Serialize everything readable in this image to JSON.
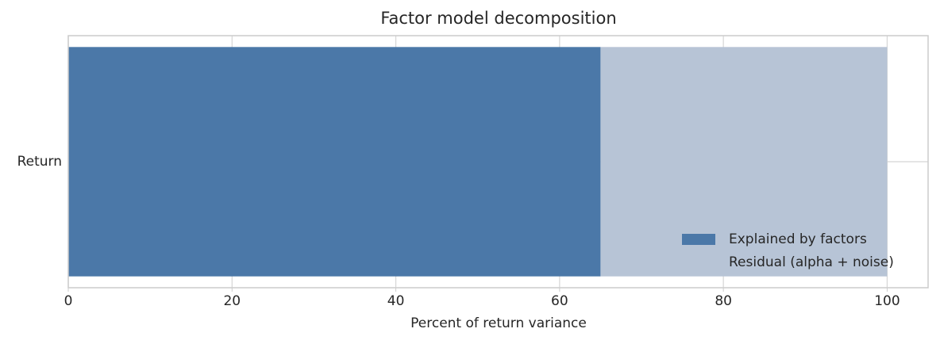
{
  "chart_data": {
    "type": "stacked-barh",
    "title": "Factor model decomposition",
    "xlabel": "Percent of return variance",
    "categories": [
      "Return"
    ],
    "series": [
      {
        "name": "Explained by factors",
        "color": "#4b78a8",
        "values": [
          65
        ]
      },
      {
        "name": "Residual (alpha + noise)",
        "color": "#b7c4d6",
        "values": [
          35
        ]
      }
    ],
    "xlim": [
      0,
      105
    ],
    "xticks": [
      0,
      20,
      40,
      60,
      80,
      100
    ],
    "grid": true,
    "legend": "lower right"
  }
}
